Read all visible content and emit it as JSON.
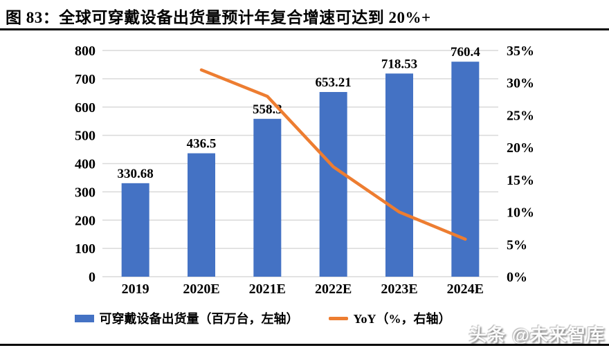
{
  "figure": {
    "title": "图 83：全球可穿戴设备出货量预计年复合增速可达到 20%+",
    "watermark": "头条 @未来智库"
  },
  "legend": {
    "bar_label": "可穿戴设备出货量（百万台，左轴）",
    "line_label": "YoY（%，右轴）"
  },
  "colors": {
    "bar": "#4472C4",
    "line": "#ED7D31",
    "grid": "#D9D9D9",
    "text": "#000000"
  },
  "chart_data": {
    "type": "bar",
    "subtype": "bar+line combo, dual axis",
    "title": "全球可穿戴设备出货量预计年复合增速可达到 20%+",
    "categories": [
      "2019",
      "2020E",
      "2021E",
      "2022E",
      "2023E",
      "2024E"
    ],
    "series": [
      {
        "name": "可穿戴设备出货量（百万台，左轴）",
        "type": "bar",
        "axis": "left",
        "color": "#4472C4",
        "values": [
          330.68,
          436.5,
          558.3,
          653.21,
          718.53,
          760.4
        ],
        "labels": [
          "330.68",
          "436.5",
          "558.3",
          "653.21",
          "718.53",
          "760.4"
        ]
      },
      {
        "name": "YoY（%，右轴）",
        "type": "line",
        "axis": "right",
        "color": "#ED7D31",
        "values": [
          null,
          32.0,
          27.9,
          17.0,
          10.0,
          5.8
        ]
      }
    ],
    "left_axis": {
      "min": 0,
      "max": 800,
      "step": 100,
      "ticks": [
        "0",
        "100",
        "200",
        "300",
        "400",
        "500",
        "600",
        "700",
        "800"
      ]
    },
    "right_axis": {
      "min": 0,
      "max": 35,
      "step": 5,
      "ticks": [
        "0%",
        "5%",
        "10%",
        "15%",
        "20%",
        "25%",
        "30%",
        "35%"
      ]
    },
    "grid": true,
    "legend_position": "bottom"
  }
}
